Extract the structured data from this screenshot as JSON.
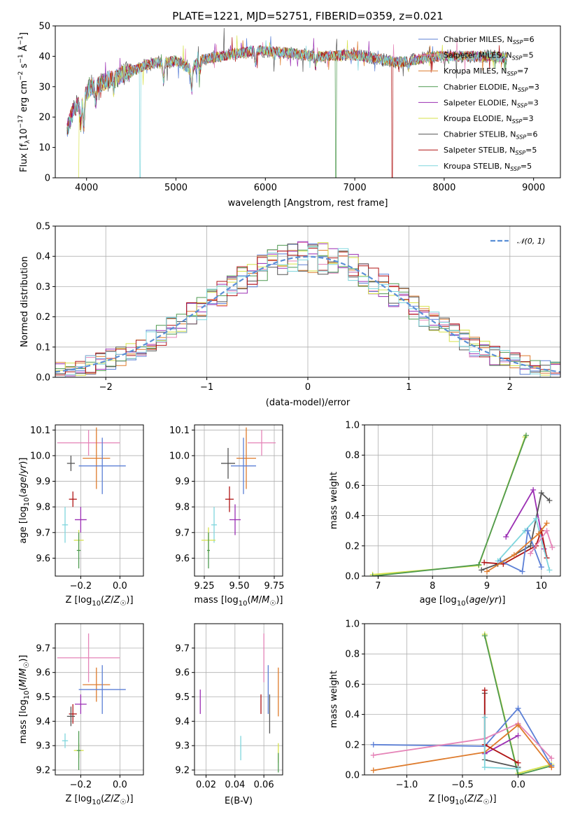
{
  "chart_data": [
    {
      "id": "spectrum",
      "type": "line",
      "title": "PLATE=1221, MJD=52751, FIBERID=0359, z=0.021",
      "xlabel": "wavelength [Angstrom, rest frame]",
      "ylabel": "Flux [fλ10⁻¹⁷ erg cm⁻² s⁻¹ Å⁻¹]",
      "xlim": [
        3650,
        9300
      ],
      "ylim": [
        0,
        50
      ],
      "xticks": [
        4000,
        5000,
        6000,
        7000,
        8000,
        9000
      ],
      "yticks": [
        0,
        10,
        20,
        30,
        40,
        50
      ],
      "grid": false,
      "legend_position": "top-right",
      "continuum": [
        [
          3780,
          16
        ],
        [
          3850,
          22
        ],
        [
          3950,
          26
        ],
        [
          4050,
          30
        ],
        [
          4150,
          31
        ],
        [
          4300,
          33
        ],
        [
          4400,
          34
        ],
        [
          4500,
          35
        ],
        [
          4650,
          37
        ],
        [
          4800,
          38
        ],
        [
          4900,
          38
        ],
        [
          5000,
          38.5
        ],
        [
          5150,
          36
        ],
        [
          5300,
          39
        ],
        [
          5500,
          40
        ],
        [
          5700,
          41
        ],
        [
          5900,
          42
        ],
        [
          6100,
          41.5
        ],
        [
          6300,
          41
        ],
        [
          6500,
          40
        ],
        [
          6700,
          40
        ],
        [
          6900,
          40.5
        ],
        [
          7100,
          40
        ],
        [
          7300,
          39
        ],
        [
          7500,
          38
        ],
        [
          7700,
          39
        ],
        [
          7900,
          40
        ],
        [
          8100,
          40
        ],
        [
          8300,
          40
        ],
        [
          8500,
          40
        ],
        [
          8700,
          39.5
        ]
      ],
      "dips": [
        [
          3934,
          8
        ],
        [
          3969,
          10
        ],
        [
          4102,
          5
        ],
        [
          4305,
          4
        ],
        [
          4861,
          6
        ],
        [
          5175,
          8
        ],
        [
          5270,
          3
        ],
        [
          5890,
          4
        ],
        [
          6563,
          3
        ],
        [
          7600,
          2
        ]
      ],
      "series": [
        {
          "name": "Chabrier MILES, N_SSP=6",
          "label_main": "Chabrier MILES, N",
          "label_sub": "SSP",
          "label_tail": "=6",
          "color": "#5b7fd6"
        },
        {
          "name": "Salpeter MILES, N_SSP=5",
          "label_main": "Salpeter MILES, N",
          "label_sub": "SSP",
          "label_tail": "=5",
          "color": "#e584b8"
        },
        {
          "name": "Kroupa MILES, N_SSP=7",
          "label_main": "Kroupa MILES, N",
          "label_sub": "SSP",
          "label_tail": "=7",
          "color": "#de7b2c"
        },
        {
          "name": "Chabrier ELODIE, N_SSP=3",
          "label_main": "Chabrier ELODIE, N",
          "label_sub": "SSP",
          "label_tail": "=3",
          "color": "#4f9a50"
        },
        {
          "name": "Salpeter ELODIE, N_SSP=3",
          "label_main": "Salpeter ELODIE, N",
          "label_sub": "SSP",
          "label_tail": "=3",
          "color": "#9b2fb3"
        },
        {
          "name": "Kroupa ELODIE, N_SSP=3",
          "label_main": "Kroupa ELODIE, N",
          "label_sub": "SSP",
          "label_tail": "=3",
          "color": "#d6e24a"
        },
        {
          "name": "Chabrier STELIB, N_SSP=6",
          "label_main": "Chabrier STELIB, N",
          "label_sub": "SSP",
          "label_tail": "=6",
          "color": "#555555"
        },
        {
          "name": "Salpeter STELIB, N_SSP=5",
          "label_main": "Salpeter STELIB, N",
          "label_sub": "SSP",
          "label_tail": "=5",
          "color": "#b01515"
        },
        {
          "name": "Kroupa STELIB, N_SSP=5",
          "label_main": "Kroupa STELIB, N",
          "label_sub": "SSP",
          "label_tail": "=5",
          "color": "#7fd6dd"
        }
      ],
      "drops": [
        {
          "series": 5,
          "x": 3910
        },
        {
          "series": 8,
          "x": 4600
        },
        {
          "series": 3,
          "x": 6790
        },
        {
          "series": 7,
          "x": 7420
        }
      ]
    },
    {
      "id": "residuals",
      "type": "step",
      "xlabel": "(data-model)/error",
      "ylabel": "Normed distribution",
      "xlim": [
        -2.5,
        2.5
      ],
      "ylim": [
        0,
        0.5
      ],
      "xticks": [
        -2,
        -1,
        0,
        1,
        2
      ],
      "yticks": [
        0.0,
        0.1,
        0.2,
        0.3,
        0.4,
        0.5
      ],
      "grid": true,
      "legend_position": "top-right",
      "reference": {
        "name": "𝒩(0, 1)",
        "color": "#5b8fd6"
      }
    },
    {
      "id": "age_vs_Z",
      "type": "errorbar",
      "xlabel": "Z [log10(Z/Z☉)]",
      "ylabel": "age [log10(age/yr)]",
      "xlim": [
        -0.33,
        0.12
      ],
      "ylim": [
        9.53,
        10.12
      ],
      "xticks": [
        -0.2,
        0.0
      ],
      "yticks": [
        9.6,
        9.7,
        9.8,
        9.9,
        10.0,
        10.1
      ],
      "grid": true,
      "points": [
        {
          "series": 1,
          "x": -0.16,
          "y": 10.05,
          "xerr": 0.16,
          "yerr": 0.05
        },
        {
          "series": 2,
          "x": -0.12,
          "y": 9.99,
          "xerr": 0.07,
          "yerr": 0.12
        },
        {
          "series": 0,
          "x": -0.09,
          "y": 9.96,
          "xerr": 0.12,
          "yerr": 0.11
        },
        {
          "series": 6,
          "x": -0.25,
          "y": 9.97,
          "xerr": 0.02,
          "yerr": 0.03
        },
        {
          "series": 7,
          "x": -0.24,
          "y": 9.83,
          "xerr": 0.02,
          "yerr": 0.03
        },
        {
          "series": 4,
          "x": -0.2,
          "y": 9.75,
          "xerr": 0.03,
          "yerr": 0.05
        },
        {
          "series": 8,
          "x": -0.28,
          "y": 9.73,
          "xerr": 0.015,
          "yerr": 0.07
        },
        {
          "series": 5,
          "x": -0.21,
          "y": 9.67,
          "xerr": 0.025,
          "yerr": 0.04
        },
        {
          "series": 3,
          "x": -0.21,
          "y": 9.63,
          "xerr": 0.01,
          "yerr": 0.07
        }
      ]
    },
    {
      "id": "age_vs_mass",
      "type": "errorbar",
      "xlabel": "mass [log10(M/M☉)]",
      "ylabel": "",
      "xlim": [
        9.18,
        9.81
      ],
      "ylim": [
        9.53,
        10.12
      ],
      "xticks": [
        9.25,
        9.5,
        9.75
      ],
      "yticks": [
        9.6,
        9.7,
        9.8,
        9.9,
        10.0,
        10.1
      ],
      "grid": true,
      "points": [
        {
          "series": 1,
          "x": 9.66,
          "y": 10.05,
          "xerr": 0.1,
          "yerr": 0.05
        },
        {
          "series": 2,
          "x": 9.55,
          "y": 9.99,
          "xerr": 0.07,
          "yerr": 0.12
        },
        {
          "series": 0,
          "x": 9.53,
          "y": 9.96,
          "xerr": 0.09,
          "yerr": 0.11
        },
        {
          "series": 6,
          "x": 9.42,
          "y": 9.97,
          "xerr": 0.05,
          "yerr": 0.06
        },
        {
          "series": 7,
          "x": 9.43,
          "y": 9.83,
          "xerr": 0.03,
          "yerr": 0.05
        },
        {
          "series": 4,
          "x": 9.47,
          "y": 9.75,
          "xerr": 0.04,
          "yerr": 0.06
        },
        {
          "series": 8,
          "x": 9.32,
          "y": 9.73,
          "xerr": 0.02,
          "yerr": 0.07
        },
        {
          "series": 5,
          "x": 9.28,
          "y": 9.67,
          "xerr": 0.05,
          "yerr": 0.05
        },
        {
          "series": 3,
          "x": 9.28,
          "y": 9.63,
          "xerr": 0.01,
          "yerr": 0.07
        }
      ]
    },
    {
      "id": "weight_vs_age",
      "type": "line",
      "xlabel": "age [log10(age/yr)]",
      "ylabel": "mass weight",
      "xlim": [
        6.75,
        10.35
      ],
      "ylim": [
        0,
        1
      ],
      "xticks": [
        7,
        8,
        9,
        10
      ],
      "yticks": [
        0.0,
        0.2,
        0.4,
        0.6,
        0.8,
        1.0
      ],
      "grid": true,
      "lines": [
        {
          "series": 5,
          "points": [
            [
              6.9,
              0.01
            ],
            [
              8.85,
              0.07
            ],
            [
              9.7,
              0.92
            ]
          ]
        },
        {
          "series": 3,
          "points": [
            [
              6.9,
              0.0
            ],
            [
              8.85,
              0.075
            ],
            [
              9.72,
              0.93
            ]
          ]
        },
        {
          "series": 4,
          "points": [
            [
              9.35,
              0.26
            ],
            [
              9.85,
              0.57
            ],
            [
              10.05,
              0.18
            ]
          ]
        },
        {
          "series": 6,
          "points": [
            [
              8.9,
              0.04
            ],
            [
              9.2,
              0.08
            ],
            [
              9.8,
              0.2
            ],
            [
              10.0,
              0.55
            ],
            [
              10.15,
              0.5
            ]
          ]
        },
        {
          "series": 7,
          "points": [
            [
              8.95,
              0.09
            ],
            [
              9.3,
              0.08
            ],
            [
              9.9,
              0.2
            ],
            [
              10.0,
              0.3
            ],
            [
              10.1,
              0.12
            ]
          ]
        },
        {
          "series": 8,
          "points": [
            [
              9.2,
              0.1
            ],
            [
              9.7,
              0.3
            ],
            [
              9.9,
              0.38
            ],
            [
              10.15,
              0.04
            ]
          ]
        },
        {
          "series": 0,
          "points": [
            [
              9.25,
              0.1
            ],
            [
              9.65,
              0.03
            ],
            [
              9.75,
              0.3
            ],
            [
              10.0,
              0.06
            ]
          ]
        },
        {
          "series": 2,
          "points": [
            [
              9.0,
              0.03
            ],
            [
              9.5,
              0.14
            ],
            [
              9.95,
              0.28
            ],
            [
              10.1,
              0.35
            ]
          ]
        },
        {
          "series": 1,
          "points": [
            [
              9.8,
              0.15
            ],
            [
              10.1,
              0.3
            ],
            [
              10.2,
              0.19
            ]
          ]
        }
      ]
    },
    {
      "id": "mass_vs_Z",
      "type": "errorbar",
      "xlabel": "Z [log10(Z/Z☉)]",
      "ylabel": "mass [log10(M/M☉)]",
      "xlim": [
        -0.33,
        0.12
      ],
      "ylim": [
        9.18,
        9.8
      ],
      "xticks": [
        -0.2,
        0.0
      ],
      "yticks": [
        9.2,
        9.3,
        9.4,
        9.5,
        9.6,
        9.7
      ],
      "grid": true,
      "points": [
        {
          "series": 1,
          "x": -0.16,
          "y": 9.66,
          "xerr": 0.16,
          "yerr": 0.1
        },
        {
          "series": 2,
          "x": -0.12,
          "y": 9.55,
          "xerr": 0.07,
          "yerr": 0.07
        },
        {
          "series": 0,
          "x": -0.09,
          "y": 9.53,
          "xerr": 0.12,
          "yerr": 0.1
        },
        {
          "series": 4,
          "x": -0.2,
          "y": 9.47,
          "xerr": 0.03,
          "yerr": 0.04
        },
        {
          "series": 7,
          "x": -0.24,
          "y": 9.43,
          "xerr": 0.02,
          "yerr": 0.04
        },
        {
          "series": 6,
          "x": -0.25,
          "y": 9.42,
          "xerr": 0.02,
          "yerr": 0.04
        },
        {
          "series": 8,
          "x": -0.28,
          "y": 9.32,
          "xerr": 0.015,
          "yerr": 0.03
        },
        {
          "series": 5,
          "x": -0.21,
          "y": 9.28,
          "xerr": 0.025,
          "yerr": 0.03
        },
        {
          "series": 3,
          "x": -0.21,
          "y": 9.28,
          "xerr": 0.01,
          "yerr": 0.08
        }
      ]
    },
    {
      "id": "mass_vs_ebv",
      "type": "errorbar",
      "xlabel": "E(B-V)",
      "ylabel": "",
      "xlim": [
        0.012,
        0.073
      ],
      "ylim": [
        9.18,
        9.8
      ],
      "xticks": [
        0.02,
        0.04,
        0.06
      ],
      "yticks": [
        9.2,
        9.3,
        9.4,
        9.5,
        9.6,
        9.7
      ],
      "grid": true,
      "points": [
        {
          "series": 1,
          "x": 0.06,
          "y": 9.66,
          "xerr": 0,
          "yerr": 0.1
        },
        {
          "series": 2,
          "x": 0.07,
          "y": 9.52,
          "xerr": 0,
          "yerr": 0.1
        },
        {
          "series": 0,
          "x": 0.063,
          "y": 9.53,
          "xerr": 0,
          "yerr": 0.1
        },
        {
          "series": 6,
          "x": 0.064,
          "y": 9.43,
          "xerr": 0,
          "yerr": 0.08
        },
        {
          "series": 7,
          "x": 0.058,
          "y": 9.47,
          "xerr": 0,
          "yerr": 0.04
        },
        {
          "series": 4,
          "x": 0.016,
          "y": 9.48,
          "xerr": 0,
          "yerr": 0.05
        },
        {
          "series": 8,
          "x": 0.044,
          "y": 9.29,
          "xerr": 0,
          "yerr": 0.05
        },
        {
          "series": 5,
          "x": 0.07,
          "y": 9.27,
          "xerr": 0,
          "yerr": 0.04
        },
        {
          "series": 3,
          "x": 0.07,
          "y": 9.23,
          "xerr": 0,
          "yerr": 0.04
        }
      ]
    },
    {
      "id": "weight_vs_Z",
      "type": "line",
      "xlabel": "Z [log10(Z/Z☉)]",
      "ylabel": "mass weight",
      "xlim": [
        -1.38,
        0.38
      ],
      "ylim": [
        0,
        1
      ],
      "xticks": [
        -1.0,
        -0.5,
        0.0
      ],
      "yticks": [
        0.0,
        0.2,
        0.4,
        0.6,
        0.8,
        1.0
      ],
      "grid": true,
      "lines": [
        {
          "series": 5,
          "points": [
            [
              -0.3,
              0.93
            ],
            [
              0.0,
              0.01
            ],
            [
              0.3,
              0.07
            ]
          ]
        },
        {
          "series": 3,
          "points": [
            [
              -0.3,
              0.92
            ],
            [
              0.0,
              0.0
            ],
            [
              0.3,
              0.06
            ]
          ]
        },
        {
          "series": 0,
          "points": [
            [
              -1.3,
              0.2
            ],
            [
              -0.3,
              0.19
            ],
            [
              0.0,
              0.44
            ],
            [
              0.3,
              0.06
            ]
          ]
        },
        {
          "series": 1,
          "points": [
            [
              -1.3,
              0.13
            ],
            [
              -0.3,
              0.24
            ],
            [
              0.0,
              0.34
            ],
            [
              0.3,
              0.11
            ]
          ]
        },
        {
          "series": 2,
          "points": [
            [
              -1.3,
              0.03
            ],
            [
              -0.3,
              0.15
            ],
            [
              0.0,
              0.33
            ],
            [
              0.3,
              0.05
            ]
          ]
        },
        {
          "series": 4,
          "points": [
            [
              -0.3,
              0.14
            ],
            [
              0.0,
              0.26
            ]
          ]
        },
        {
          "series": 6,
          "points": [
            [
              -0.3,
              0.54
            ],
            [
              -0.3,
              0.1
            ],
            [
              0.0,
              0.05
            ]
          ]
        },
        {
          "series": 7,
          "points": [
            [
              -0.3,
              0.56
            ],
            [
              -0.3,
              0.2
            ],
            [
              0.0,
              0.08
            ]
          ]
        },
        {
          "series": 8,
          "points": [
            [
              -0.3,
              0.38
            ],
            [
              -0.3,
              0.05
            ],
            [
              0.0,
              0.04
            ]
          ]
        }
      ]
    }
  ]
}
